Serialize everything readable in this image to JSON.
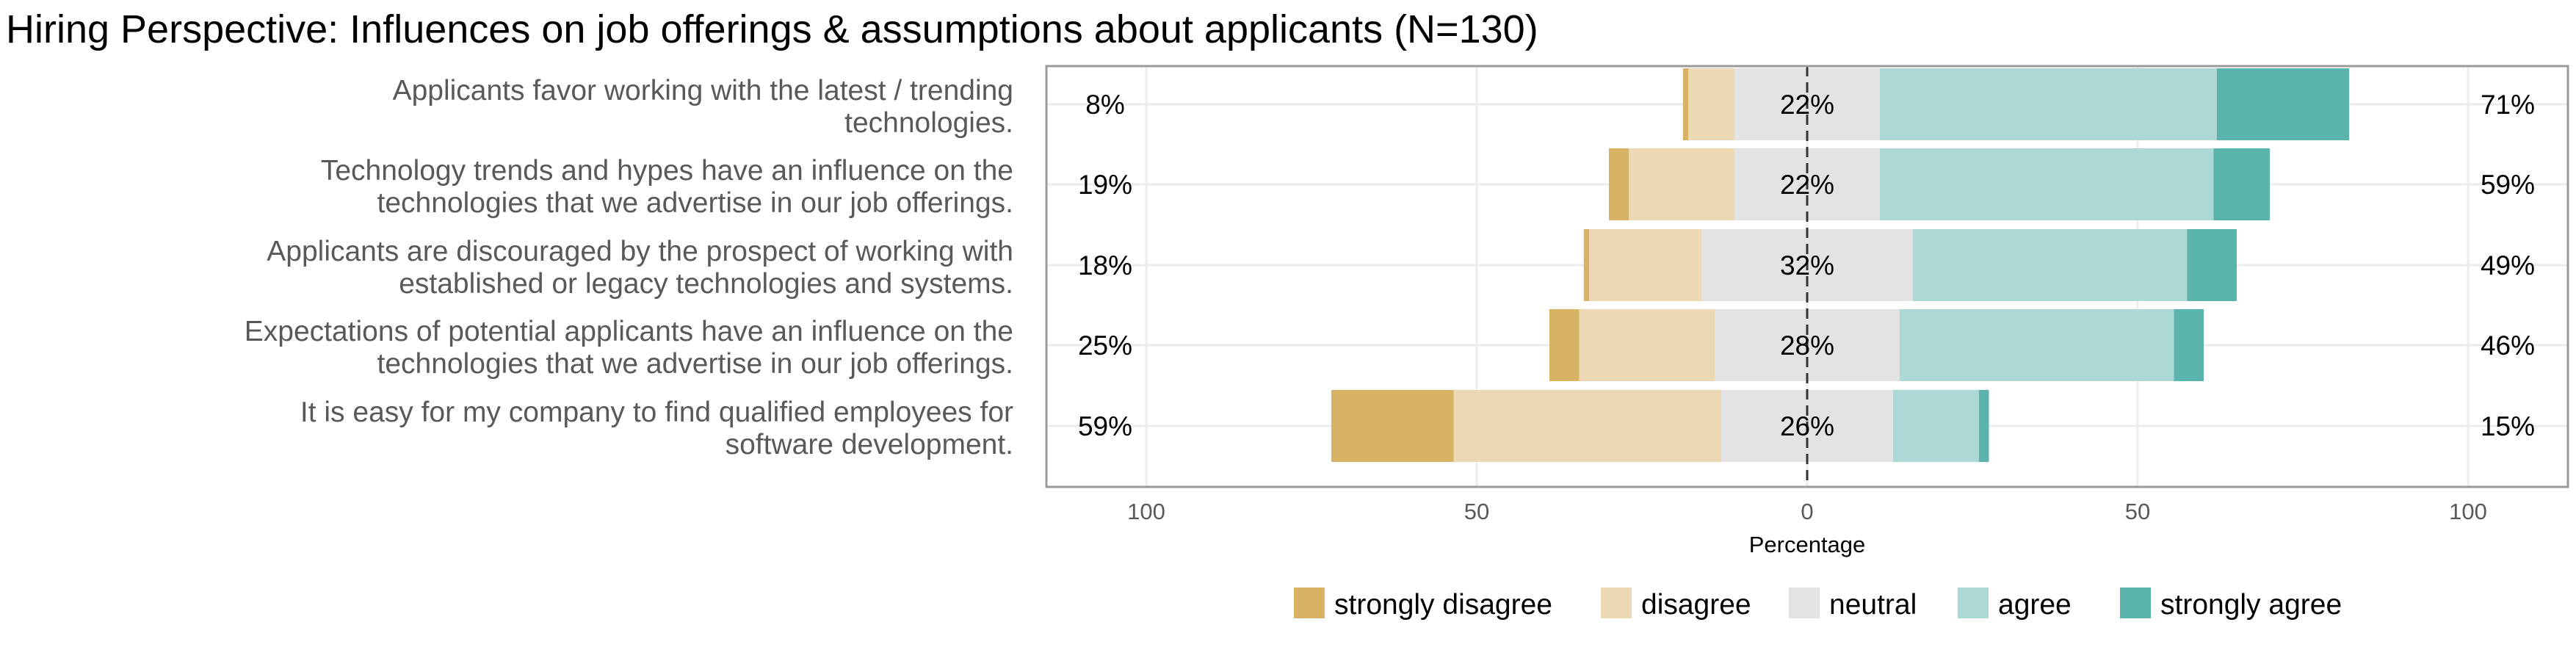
{
  "chart_data": {
    "type": "bar",
    "title": "Hiring Perspective: Influences on job offerings & assumptions about applicants (N=130)",
    "xlabel": "Percentage",
    "ylabel": "",
    "xlim": [
      -115,
      115
    ],
    "x_ticks": [
      -100,
      -50,
      0,
      50,
      100
    ],
    "x_tick_labels": [
      "100",
      "50",
      "0",
      "50",
      "100"
    ],
    "grid": true,
    "legend_position": "bottom",
    "categories": [
      [
        "Applicants favor working with the latest / trending",
        "technologies."
      ],
      [
        "Technology trends and hypes have an influence on the",
        "technologies that we advertise in our job offerings."
      ],
      [
        "Applicants are discouraged by the prospect of working with",
        "established or legacy technologies and systems."
      ],
      [
        "Expectations of potential applicants have an influence on the",
        "technologies that we advertise in our job offerings."
      ],
      [
        "It is easy for my company to find qualified employees for",
        "software development."
      ]
    ],
    "series": [
      {
        "name": "strongly disagree",
        "color": "#d8b365",
        "values": [
          0.8,
          3,
          0.8,
          4.5,
          18.5
        ]
      },
      {
        "name": "disagree",
        "color": "#ecd9b4",
        "values": [
          7,
          16,
          17,
          20.5,
          40.5
        ]
      },
      {
        "name": "neutral",
        "color": "#e3e3e3",
        "values": [
          22,
          22,
          32,
          28,
          26
        ]
      },
      {
        "name": "agree",
        "color": "#acd9d5",
        "values": [
          51,
          50.5,
          41.5,
          41.5,
          13
        ]
      },
      {
        "name": "strongly agree",
        "color": "#5ab4ac",
        "values": [
          20,
          8.5,
          7.5,
          4.5,
          1.5
        ]
      }
    ],
    "left_labels": [
      "8%",
      "19%",
      "18%",
      "25%",
      "59%"
    ],
    "center_labels": [
      "22%",
      "22%",
      "32%",
      "28%",
      "26%"
    ],
    "right_labels": [
      "71%",
      "59%",
      "49%",
      "46%",
      "15%"
    ]
  }
}
